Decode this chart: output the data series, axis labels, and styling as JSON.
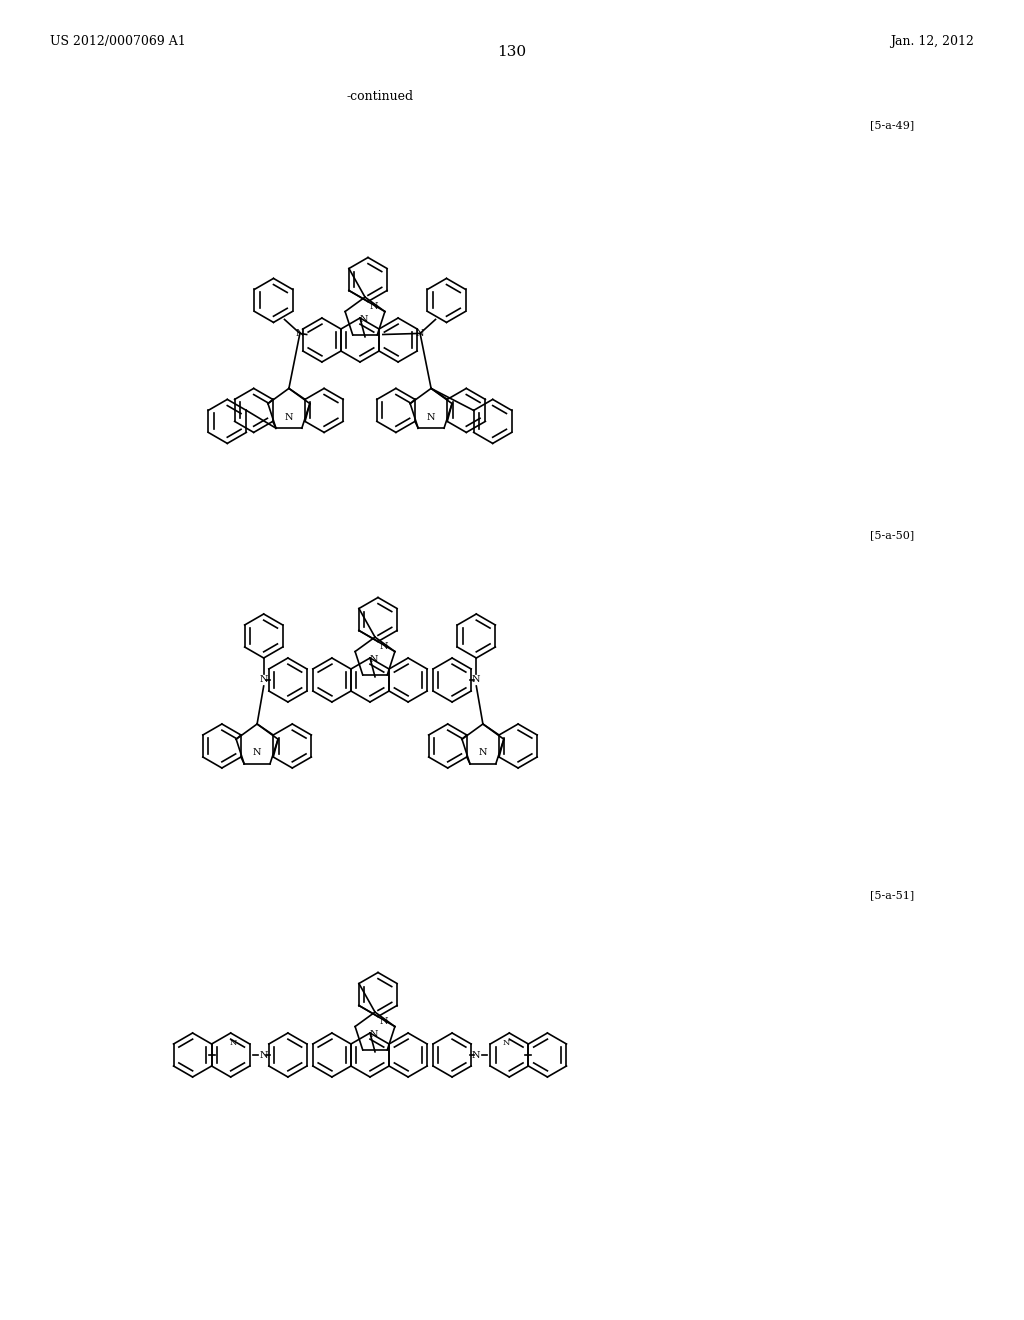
{
  "page_header_left": "US 2012/0007069 A1",
  "page_header_right": "Jan. 12, 2012",
  "page_number": "130",
  "continued_text": "-continued",
  "labels": [
    "[5-a-49]",
    "[5-a-50]",
    "[5-a-51]"
  ],
  "background_color": "#ffffff",
  "line_color": "#000000",
  "text_color": "#000000",
  "font_size_header": 9,
  "font_size_label": 8,
  "font_size_page_num": 11
}
